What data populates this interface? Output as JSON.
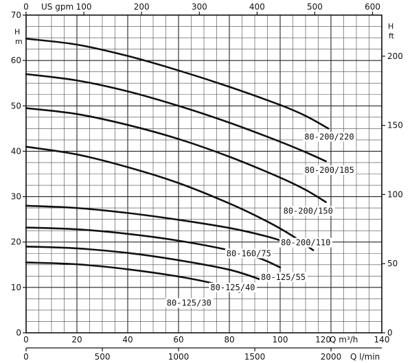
{
  "chart_data": {
    "type": "line",
    "title": "",
    "axes": {
      "x_main": {
        "label": "Q m³/h",
        "range": [
          0,
          140
        ],
        "ticks": [
          0,
          20,
          40,
          60,
          80,
          100,
          120,
          140
        ],
        "tick_labels": [
          "0",
          "20",
          "40",
          "60",
          "80",
          "100",
          "120",
          "140"
        ],
        "unit_text": "Q m³/h"
      },
      "x_top": {
        "label": "US gpm",
        "range": [
          0,
          616
        ],
        "ticks": [
          0,
          100,
          200,
          300,
          400,
          500,
          600
        ],
        "tick_labels": [
          "0",
          "100",
          "200",
          "300",
          "400",
          "500",
          "600"
        ],
        "unit_text": "US gpm"
      },
      "x_bottom": {
        "label": "Q l/min",
        "range": [
          0,
          2333
        ],
        "ticks": [
          0,
          500,
          1000,
          1500,
          2000
        ],
        "tick_labels": [
          "0",
          "500",
          "1000",
          "1500",
          "2000"
        ],
        "unit_text": "Q l/min"
      },
      "y_left": {
        "label": "H m",
        "range": [
          0,
          70
        ],
        "ticks": [
          0,
          10,
          20,
          30,
          40,
          50,
          60,
          70
        ],
        "tick_labels": [
          "0",
          "10",
          "20",
          "30",
          "40",
          "50",
          "60",
          "70"
        ],
        "unit_text_1": "H",
        "unit_text_2": "m"
      },
      "y_right": {
        "label": "H ft",
        "range": [
          0,
          229.7
        ],
        "ticks": [
          0,
          50,
          100,
          150,
          200
        ],
        "tick_labels": [
          "0",
          "50",
          "100",
          "150",
          "200"
        ],
        "unit_text_1": "H",
        "unit_text_2": "ft"
      }
    },
    "grid": true,
    "series": [
      {
        "name": "80-200/220",
        "points": [
          [
            0,
            64.8
          ],
          [
            20,
            63.5
          ],
          [
            40,
            61.0
          ],
          [
            60,
            57.8
          ],
          [
            80,
            54.2
          ],
          [
            100,
            50.2
          ],
          [
            110,
            47.8
          ],
          [
            119,
            45.0
          ]
        ]
      },
      {
        "name": "80-200/185",
        "points": [
          [
            0,
            57.0
          ],
          [
            20,
            55.6
          ],
          [
            40,
            53.2
          ],
          [
            60,
            50.0
          ],
          [
            80,
            46.3
          ],
          [
            100,
            42.1
          ],
          [
            110,
            39.8
          ],
          [
            118,
            37.8
          ]
        ]
      },
      {
        "name": "80-200/150",
        "points": [
          [
            0,
            49.5
          ],
          [
            20,
            48.2
          ],
          [
            40,
            45.8
          ],
          [
            60,
            42.7
          ],
          [
            80,
            38.8
          ],
          [
            100,
            34.2
          ],
          [
            110,
            31.5
          ],
          [
            118,
            28.8
          ]
        ]
      },
      {
        "name": "80-200/110",
        "points": [
          [
            0,
            41.0
          ],
          [
            20,
            39.3
          ],
          [
            40,
            36.5
          ],
          [
            60,
            33.0
          ],
          [
            80,
            28.5
          ],
          [
            95,
            24.5
          ],
          [
            105,
            21.3
          ],
          [
            113,
            18.2
          ]
        ]
      },
      {
        "name": "80-160/75",
        "points": [
          [
            0,
            28.0
          ],
          [
            20,
            27.5
          ],
          [
            40,
            26.4
          ],
          [
            60,
            24.9
          ],
          [
            80,
            23.1
          ],
          [
            95,
            21.2
          ],
          [
            104,
            19.6
          ]
        ]
      },
      {
        "name": "80-125/55",
        "points": [
          [
            0,
            23.2
          ],
          [
            20,
            22.8
          ],
          [
            40,
            21.8
          ],
          [
            60,
            20.3
          ],
          [
            80,
            18.2
          ],
          [
            92,
            16.4
          ],
          [
            100,
            14.4
          ]
        ]
      },
      {
        "name": "80-125/40",
        "points": [
          [
            0,
            19.0
          ],
          [
            20,
            18.6
          ],
          [
            40,
            17.6
          ],
          [
            60,
            16.0
          ],
          [
            80,
            13.9
          ],
          [
            92,
            11.8
          ]
        ]
      },
      {
        "name": "80-125/30",
        "points": [
          [
            0,
            15.5
          ],
          [
            20,
            15.1
          ],
          [
            40,
            14.0
          ],
          [
            60,
            12.4
          ],
          [
            75,
            10.7
          ],
          [
            84,
            9.0
          ]
        ]
      }
    ]
  }
}
